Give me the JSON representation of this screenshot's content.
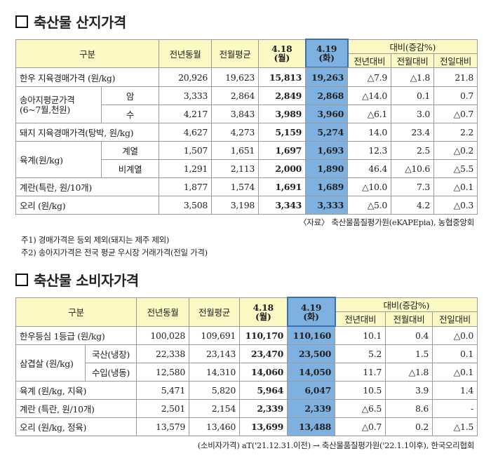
{
  "section1": {
    "title": "축산물 산지가격",
    "headers": {
      "category": "구분",
      "prev_year": "전년동월",
      "prev_month_avg": "전월평균",
      "date1": "4.18",
      "day1": "(월)",
      "date2": "4.19",
      "day2": "(화)",
      "compare": "대비(증감%)",
      "vs_year": "전년대비",
      "vs_month": "전월대비",
      "vs_day": "전일대비"
    },
    "rows": [
      {
        "label": "한우 지육경매가격 (원/kg)",
        "sub": "",
        "v": [
          "20,926",
          "19,623",
          "15,813",
          "19,263",
          "△7.9",
          "△1.8",
          "21.8"
        ]
      },
      {
        "label": "송아지평균가격",
        "label2": "(6~7월,천원)",
        "sub": "암",
        "v": [
          "3,333",
          "2,864",
          "2,849",
          "2,868",
          "△14.0",
          "0.1",
          "0.7"
        ]
      },
      {
        "label": "",
        "sub": "수",
        "v": [
          "4,217",
          "3,843",
          "3,989",
          "3,960",
          "△6.1",
          "3.0",
          "△0.7"
        ]
      },
      {
        "label": "돼지 지육경매가격(탕박, 원/kg)",
        "sub": "",
        "v": [
          "4,627",
          "4,273",
          "5,159",
          "5,274",
          "14.0",
          "23.4",
          "2.2"
        ]
      },
      {
        "label": "육계(원/kg)",
        "sub": "계열",
        "v": [
          "1,507",
          "1,651",
          "1,697",
          "1,693",
          "12.3",
          "2.5",
          "△0.2"
        ]
      },
      {
        "label": "",
        "sub": "비계열",
        "v": [
          "1,291",
          "2,113",
          "2,000",
          "1,890",
          "46.4",
          "△10.6",
          "△5.5"
        ]
      },
      {
        "label": "계란(특란, 원/10개)",
        "sub": "",
        "v": [
          "1,877",
          "1,574",
          "1,691",
          "1,689",
          "△10.0",
          "7.3",
          "△0.1"
        ]
      },
      {
        "label": "오리 (원/kg)",
        "sub": "",
        "v": [
          "3,508",
          "3,198",
          "3,343",
          "3,333",
          "△5.0",
          "4.2",
          "△0.3"
        ]
      }
    ],
    "source": "〈자료〉 축산물품질평가원(eKAPEpia), 농협중앙회",
    "note1": "주1) 경매가격은 등외 제외(돼지는 제주 제외)",
    "note2": "주2) 송아지가격은 전국 평균 우시장 거래가격(전일 가격)"
  },
  "section2": {
    "title": "축산물 소비자가격",
    "headers": {
      "category": "구분",
      "prev_year": "전년동월",
      "prev_month_avg": "전월평균",
      "date1": "4.18",
      "day1": "(월)",
      "date2": "4.19",
      "day2": "(화)",
      "compare": "대비(증감%)",
      "vs_year": "전년대비",
      "vs_month": "전월대비",
      "vs_day": "전일대비"
    },
    "rows": [
      {
        "label": "한우등심 1등급 (원/kg)",
        "sub": "",
        "v": [
          "100,028",
          "109,691",
          "110,170",
          "110,160",
          "10.1",
          "0.4",
          "△0.0"
        ]
      },
      {
        "label": "삼겹살 (원/kg)",
        "sub": "국산(냉장)",
        "v": [
          "22,338",
          "23,143",
          "23,470",
          "23,500",
          "5.2",
          "1.5",
          "0.1"
        ]
      },
      {
        "label": "",
        "sub": "수입(냉동)",
        "v": [
          "12,580",
          "14,310",
          "14,060",
          "14,050",
          "11.7",
          "△1.8",
          "△0.1"
        ]
      },
      {
        "label": "육계 (원/kg, 지육)",
        "sub": "",
        "v": [
          "5,471",
          "5,820",
          "5,964",
          "6,047",
          "10.5",
          "3.9",
          "1.4"
        ]
      },
      {
        "label": "계란 (특란, 원/10개)",
        "sub": "",
        "v": [
          "2,501",
          "2,154",
          "2,339",
          "2,339",
          "△6.5",
          "8.6",
          "-"
        ]
      },
      {
        "label": "오리 (원/kg, 정육)",
        "sub": "",
        "v": [
          "13,579",
          "13,460",
          "13,699",
          "13,488",
          "△0.7",
          "0.2",
          "△1.5"
        ]
      }
    ],
    "source": "(소비자가격) aT('21.12.31.이전) → 축산물품질평가원('22.1.1이후), 한국오리협회"
  }
}
